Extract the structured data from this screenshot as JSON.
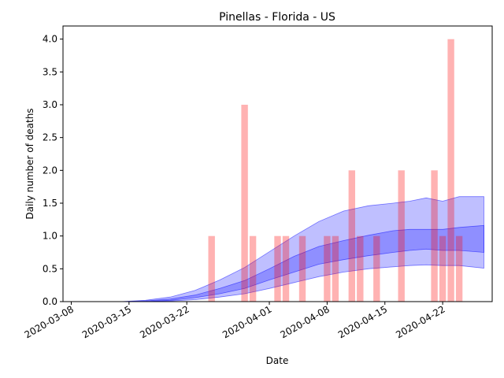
{
  "chart_data": {
    "type": "bar",
    "title": "Pinellas - Florida - US",
    "xlabel": "Date",
    "ylabel": "Daily number of deaths",
    "xlim": [
      "2020-03-07",
      "2020-04-28"
    ],
    "ylim": [
      0,
      4.2
    ],
    "x_ticks": [
      "2020-03-08",
      "2020-03-15",
      "2020-03-22",
      "2020-04-01",
      "2020-04-08",
      "2020-04-15",
      "2020-04-22"
    ],
    "y_ticks": [
      "0.0",
      "0.5",
      "1.0",
      "1.5",
      "2.0",
      "2.5",
      "3.0",
      "3.5",
      "4.0"
    ],
    "grid": false,
    "colors": {
      "bars": "#ff0000",
      "bars_alpha": 0.3,
      "band": "#0000ff",
      "band_alpha": 0.25
    },
    "bars": {
      "x": [
        "2020-03-25",
        "2020-03-29",
        "2020-03-30",
        "2020-04-02",
        "2020-04-03",
        "2020-04-05",
        "2020-04-08",
        "2020-04-09",
        "2020-04-11",
        "2020-04-12",
        "2020-04-14",
        "2020-04-17",
        "2020-04-21",
        "2020-04-22",
        "2020-04-23",
        "2020-04-24"
      ],
      "values": [
        1,
        3,
        1,
        1,
        1,
        1,
        1,
        1,
        2,
        1,
        1,
        2,
        2,
        1,
        4,
        1
      ]
    },
    "bands": {
      "x": [
        "2020-03-14",
        "2020-03-17",
        "2020-03-20",
        "2020-03-23",
        "2020-03-26",
        "2020-03-29",
        "2020-04-01",
        "2020-04-04",
        "2020-04-07",
        "2020-04-10",
        "2020-04-13",
        "2020-04-16",
        "2020-04-18",
        "2020-04-20",
        "2020-04-22",
        "2020-04-24",
        "2020-04-27"
      ],
      "outer_upper": [
        0.0,
        0.02,
        0.07,
        0.17,
        0.33,
        0.52,
        0.76,
        1.0,
        1.22,
        1.38,
        1.46,
        1.5,
        1.53,
        1.58,
        1.53,
        1.6,
        1.6
      ],
      "inner_upper": [
        0.0,
        0.01,
        0.04,
        0.1,
        0.2,
        0.32,
        0.5,
        0.69,
        0.84,
        0.93,
        1.01,
        1.08,
        1.1,
        1.1,
        1.1,
        1.13,
        1.16
      ],
      "inner_lower": [
        0.0,
        0.0,
        0.02,
        0.06,
        0.12,
        0.2,
        0.33,
        0.45,
        0.57,
        0.64,
        0.7,
        0.75,
        0.78,
        0.8,
        0.78,
        0.78,
        0.75
      ],
      "outer_lower": [
        0.0,
        0.0,
        0.01,
        0.03,
        0.07,
        0.12,
        0.2,
        0.29,
        0.38,
        0.45,
        0.5,
        0.53,
        0.55,
        0.56,
        0.55,
        0.55,
        0.51
      ]
    }
  }
}
